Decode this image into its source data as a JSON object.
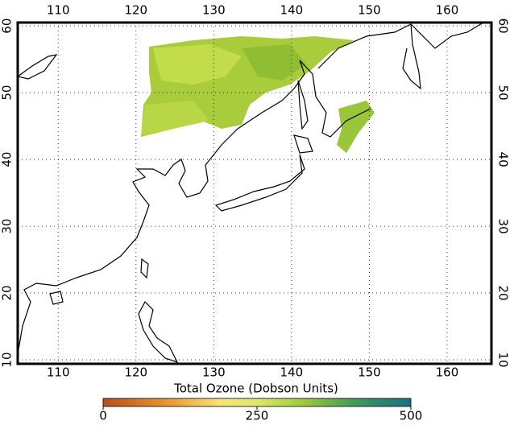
{
  "map": {
    "xlim": [
      104.8,
      165.7
    ],
    "ylim": [
      9.4,
      60.5
    ],
    "xticks": [
      110,
      120,
      130,
      140,
      150,
      160
    ],
    "yticks": [
      10,
      20,
      30,
      40,
      50,
      60
    ],
    "grid": true
  },
  "colorbar": {
    "title": "Total Ozone (Dobson Units)",
    "lim": [
      0,
      500
    ],
    "ticks": [
      0,
      250,
      500
    ]
  }
}
